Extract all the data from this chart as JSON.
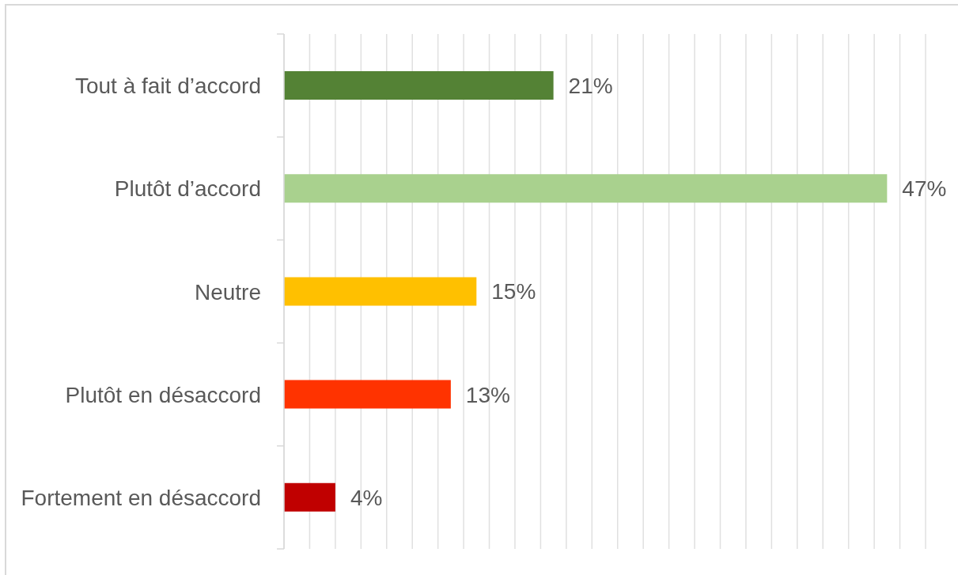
{
  "chart_data": {
    "type": "bar",
    "orientation": "horizontal",
    "categories": [
      "Tout à fait d’accord",
      "Plutôt d’accord",
      "Neutre",
      "Plutôt en désaccord",
      "Fortement en désaccord"
    ],
    "values": [
      21,
      47,
      15,
      13,
      4
    ],
    "value_labels": [
      "21%",
      "47%",
      "15%",
      "13%",
      "4%"
    ],
    "colors": [
      "#548235",
      "#a9d18e",
      "#ffc000",
      "#ff3300",
      "#c00000"
    ],
    "xlim": [
      0,
      50
    ],
    "xticks": [
      {
        "value": 0,
        "label": null
      },
      {
        "value": 2,
        "label": null
      },
      {
        "value": 4,
        "label": null
      },
      {
        "value": 6,
        "label": null
      },
      {
        "value": 8,
        "label": null
      },
      {
        "value": 10,
        "label": null
      },
      {
        "value": 12,
        "label": null
      },
      {
        "value": 14,
        "label": null
      },
      {
        "value": 16,
        "label": null
      },
      {
        "value": 18,
        "label": null
      },
      {
        "value": 20,
        "label": null
      },
      {
        "value": 22,
        "label": null
      },
      {
        "value": 24,
        "label": null
      },
      {
        "value": 26,
        "label": null
      },
      {
        "value": 28,
        "label": null
      },
      {
        "value": 30,
        "label": null
      },
      {
        "value": 32,
        "label": null
      },
      {
        "value": 34,
        "label": null
      },
      {
        "value": 36,
        "label": null
      },
      {
        "value": 38,
        "label": null
      },
      {
        "value": 40,
        "label": null
      },
      {
        "value": 42,
        "label": null
      },
      {
        "value": 44,
        "label": null
      },
      {
        "value": 46,
        "label": null
      },
      {
        "value": 48,
        "label": null
      },
      {
        "value": 50,
        "label": null
      }
    ],
    "tick_labels": "y",
    "grid": "x"
  }
}
